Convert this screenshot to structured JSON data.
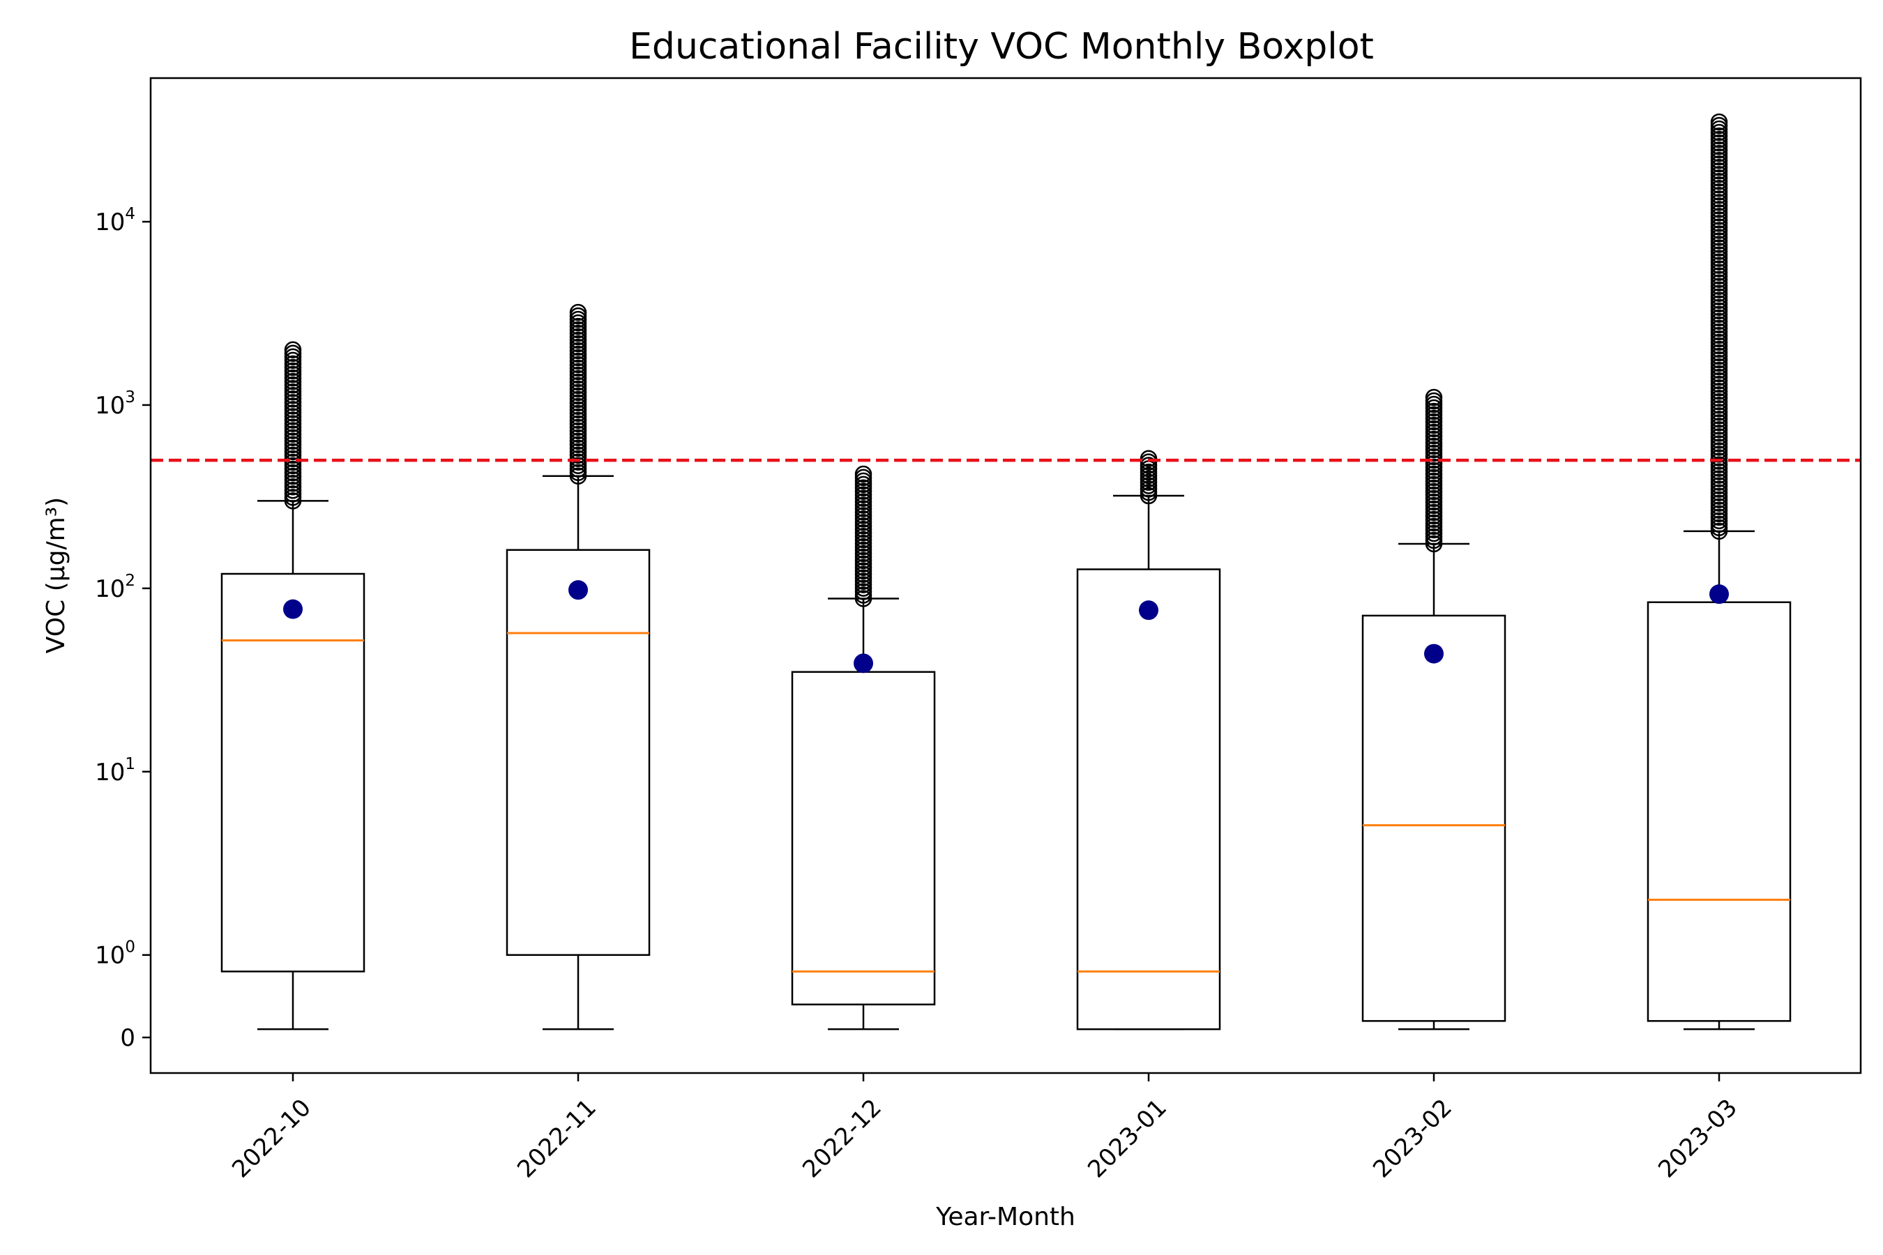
{
  "chart_data": {
    "type": "boxplot",
    "title": "Educational Facility VOC Monthly Boxplot",
    "xlabel": "Year-Month",
    "ylabel": "VOC (µg/m³)",
    "yscale": "symlog",
    "ylim": [
      -0.3,
      60000
    ],
    "grid": false,
    "y_ticks": [
      {
        "value": 0,
        "base": "0",
        "exp": ""
      },
      {
        "value": 1,
        "base": "10",
        "exp": "0"
      },
      {
        "value": 10,
        "base": "10",
        "exp": "1"
      },
      {
        "value": 100,
        "base": "10",
        "exp": "2"
      },
      {
        "value": 1000,
        "base": "10",
        "exp": "3"
      },
      {
        "value": 10000,
        "base": "10",
        "exp": "4"
      }
    ],
    "threshold": {
      "value": 500,
      "color": "#e8111a",
      "style": "dashed"
    },
    "colors": {
      "box": "#000000",
      "median": "#ff7f0e",
      "mean": "#00008b",
      "outlier": "#000000"
    },
    "categories": [
      "2022-10",
      "2022-11",
      "2022-12",
      "2023-01",
      "2023-02",
      "2023-03"
    ],
    "boxes": [
      {
        "label": "2022-10",
        "whisker_low": 0.1,
        "q1": 0.8,
        "median": 52,
        "q3": 120,
        "whisker_high": 300,
        "mean": 77,
        "outliers_min": 300,
        "outliers_max": 2000
      },
      {
        "label": "2022-11",
        "whisker_low": 0.1,
        "q1": 1.0,
        "median": 57,
        "q3": 162,
        "whisker_high": 410,
        "mean": 98,
        "outliers_min": 410,
        "outliers_max": 3200
      },
      {
        "label": "2022-12",
        "whisker_low": 0.1,
        "q1": 0.4,
        "median": 0.8,
        "q3": 35,
        "whisker_high": 88,
        "mean": 39,
        "outliers_min": 88,
        "outliers_max": 420
      },
      {
        "label": "2023-01",
        "whisker_low": 0.1,
        "q1": 0.1,
        "median": 0.8,
        "q3": 127,
        "whisker_high": 320,
        "mean": 76,
        "outliers_min": 320,
        "outliers_max": 510
      },
      {
        "label": "2023-02",
        "whisker_low": 0.1,
        "q1": 0.2,
        "median": 5.1,
        "q3": 71,
        "whisker_high": 175,
        "mean": 44,
        "outliers_min": 175,
        "outliers_max": 1100
      },
      {
        "label": "2023-03",
        "whisker_low": 0.1,
        "q1": 0.2,
        "median": 2.0,
        "q3": 84,
        "whisker_high": 205,
        "mean": 93,
        "outliers_min": 205,
        "outliers_max": 35000
      }
    ]
  }
}
